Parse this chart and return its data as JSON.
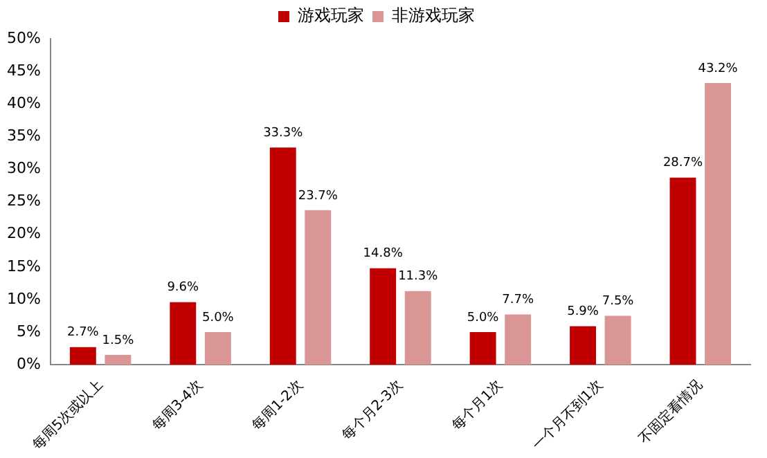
{
  "chart_data": {
    "type": "bar",
    "categories": [
      "每周5次或以上",
      "每周3-4次",
      "每周1-2次",
      "每个月2-3次",
      "每个月1次",
      "一个月不到1次",
      "不固定看情况"
    ],
    "series": [
      {
        "name": "游戏玩家",
        "color": "#c00000",
        "values": [
          2.7,
          9.6,
          33.3,
          14.8,
          5.0,
          5.9,
          28.7
        ],
        "value_labels": [
          "2.7%",
          "9.6%",
          "33.3%",
          "14.8%",
          "5.0%",
          "5.9%",
          "28.7%"
        ]
      },
      {
        "name": "非游戏玩家",
        "color": "#d99694",
        "values": [
          1.5,
          5.0,
          23.7,
          11.3,
          7.7,
          7.5,
          43.2
        ],
        "value_labels": [
          "1.5%",
          "5.0%",
          "23.7%",
          "11.3%",
          "7.7%",
          "7.5%",
          "43.2%"
        ]
      }
    ],
    "ylim": [
      0,
      50
    ],
    "yticks": [
      {
        "value": 0,
        "label": "0%"
      },
      {
        "value": 5,
        "label": "5%"
      },
      {
        "value": 10,
        "label": "10%"
      },
      {
        "value": 15,
        "label": "15%"
      },
      {
        "value": 20,
        "label": "20%"
      },
      {
        "value": 25,
        "label": "25%"
      },
      {
        "value": 30,
        "label": "30%"
      },
      {
        "value": 35,
        "label": "35%"
      },
      {
        "value": 40,
        "label": "40%"
      },
      {
        "value": 45,
        "label": "45%"
      },
      {
        "value": 50,
        "label": "50%"
      }
    ],
    "grid": false,
    "legend": "top"
  }
}
